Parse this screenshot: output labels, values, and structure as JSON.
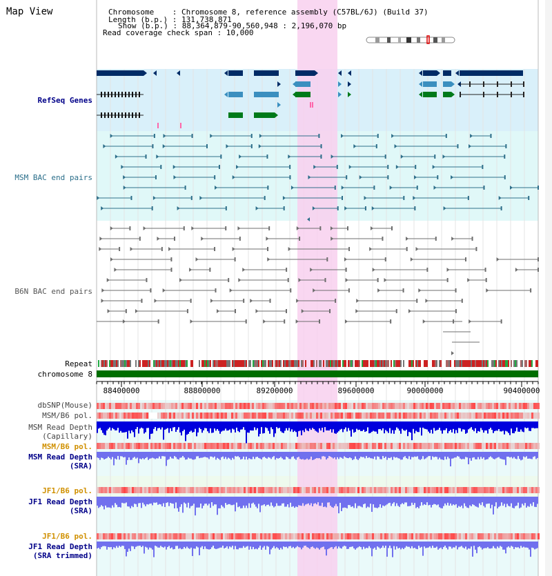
{
  "view_title": "Map View",
  "info": {
    "chromosome": "Chromosome    : Chromosome 8, reference assembly (C57BL/6J) (Build 37)",
    "length": "Length (b.p.) : 131,738,871",
    "show": "Show (b.p.) : 88,364,879-90,560,948 : 2,196,070 bp",
    "coverage": "Read coverage check span : 10,000"
  },
  "tracks": {
    "refseq": "RefSeq Genes",
    "msm_bac": "MSM BAC end pairs",
    "b6n_bac": "B6N BAC end pairs",
    "repeat": "Repeat",
    "chromosome": "chromosome 8",
    "dbsnp": "dbSNP(Mouse)",
    "msm_b6_pol_1": "MSM/B6 pol.",
    "msm_depth_cap_1": "MSM Read Depth",
    "msm_depth_cap_2": "(Capillary)",
    "msm_b6_pol_2": "MSM/B6 pol.",
    "msm_depth_sra_1": "MSM Read Depth",
    "msm_depth_sra_2": "(SRA)",
    "jf1_b6_pol_1": "JF1/B6 pol.",
    "jf1_depth_sra_1": "JF1 Read Depth",
    "jf1_depth_sra_2": "(SRA)",
    "jf1_b6_pol_2": "JF1/B6 pol.",
    "jf1_depth_trim_1": "JF1 Read Depth",
    "jf1_depth_trim_2": "(SRA trimmed)"
  },
  "axis": {
    "ticks": [
      "88400000",
      "88800000",
      "89200000",
      "89600000",
      "90000000",
      "90400000"
    ]
  },
  "colors": {
    "refseq_bg": "#d9f0fa",
    "bac_bg": "#e0f8f8",
    "highlight": "#f8d0ee",
    "gene_dark": "#002b66",
    "gene_mid": "#3b8fbf",
    "gene_green": "#007a1a",
    "msm_pair": "#2e6f8a",
    "b6n_pair": "#6e6e6e",
    "chrom_bar": "#006e00",
    "depth_blue": "#0000dd",
    "depth_light": "#7070ee",
    "label_navy": "#000088",
    "label_orange": "#d09000",
    "label_teal": "#2a6e8a",
    "label_gray": "#555555"
  }
}
